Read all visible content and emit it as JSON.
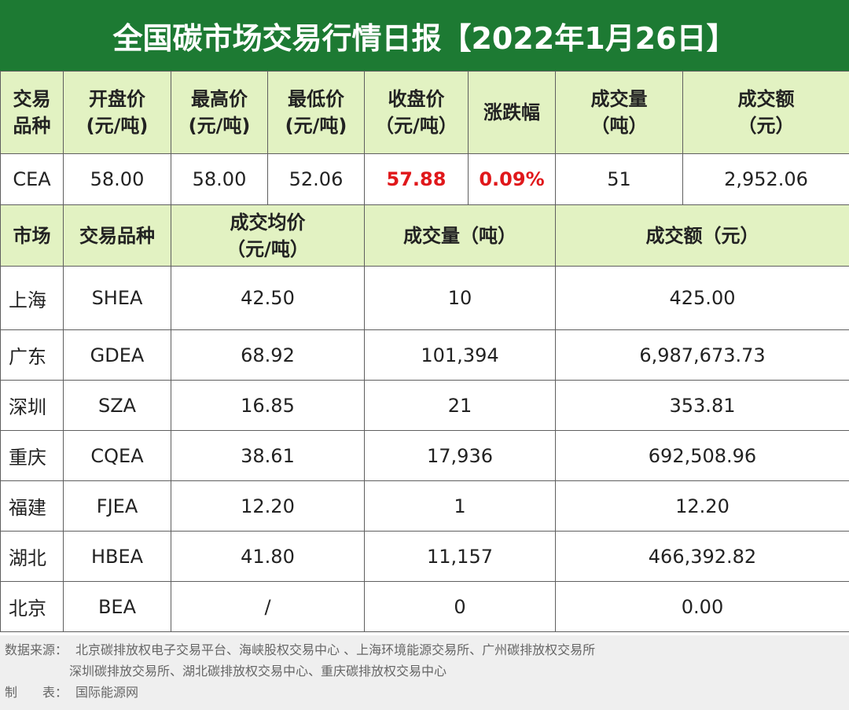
{
  "title": "全国碳市场交易行情日报【2022年1月26日】",
  "national": {
    "headers": [
      [
        "交易",
        "品种"
      ],
      [
        "开盘价",
        "(元/吨)"
      ],
      [
        "最高价",
        "(元/吨)"
      ],
      [
        "最低价",
        "(元/吨)"
      ],
      [
        "收盘价",
        "（元/吨）"
      ],
      [
        "涨跌幅"
      ],
      [
        "成交量",
        "（吨）"
      ],
      [
        "成交额",
        "（元）"
      ]
    ],
    "row": {
      "variety": "CEA",
      "open": "58.00",
      "high": "58.00",
      "low": "52.06",
      "close": "57.88",
      "change": "0.09%",
      "volume": "51",
      "amount": "2,952.06"
    }
  },
  "regional": {
    "headers": {
      "market": "市场",
      "variety": "交易品种",
      "avg_price": [
        "成交均价",
        "（元/吨）"
      ],
      "volume": "成交量（吨）",
      "amount": "成交额（元）"
    },
    "rows": [
      {
        "market": "上海",
        "variety": "SHEA",
        "avg": "42.50",
        "volume": "10",
        "amount": "425.00"
      },
      {
        "market": "广东",
        "variety": "GDEA",
        "avg": "68.92",
        "volume": "101,394",
        "amount": "6,987,673.73"
      },
      {
        "market": "深圳",
        "variety": "SZA",
        "avg": "16.85",
        "volume": "21",
        "amount": "353.81"
      },
      {
        "market": "重庆",
        "variety": "CQEA",
        "avg": "38.61",
        "volume": "17,936",
        "amount": "692,508.96"
      },
      {
        "market": "福建",
        "variety": "FJEA",
        "avg": "12.20",
        "volume": "1",
        "amount": "12.20"
      },
      {
        "market": "湖北",
        "variety": "HBEA",
        "avg": "41.80",
        "volume": "11,157",
        "amount": "466,392.82"
      },
      {
        "market": "北京",
        "variety": "BEA",
        "avg": "/",
        "volume": "0",
        "amount": "0.00"
      }
    ]
  },
  "footer": {
    "source_label": "数据来源：",
    "source_line1": "北京碳排放权电子交易平台、海峡股权交易中心 、上海环境能源交易所、广州碳排放权交易所",
    "source_line2": "深圳碳排放交易所、湖北碳排放权交易中心、重庆碳排放权交易中心",
    "maker_label": "制　　表：",
    "maker": "国际能源网"
  },
  "colors": {
    "title_bg": "#1d7a33",
    "header_bg": "#e2f2c2",
    "highlight": "#e0181b",
    "footer_bg": "#efefef"
  }
}
